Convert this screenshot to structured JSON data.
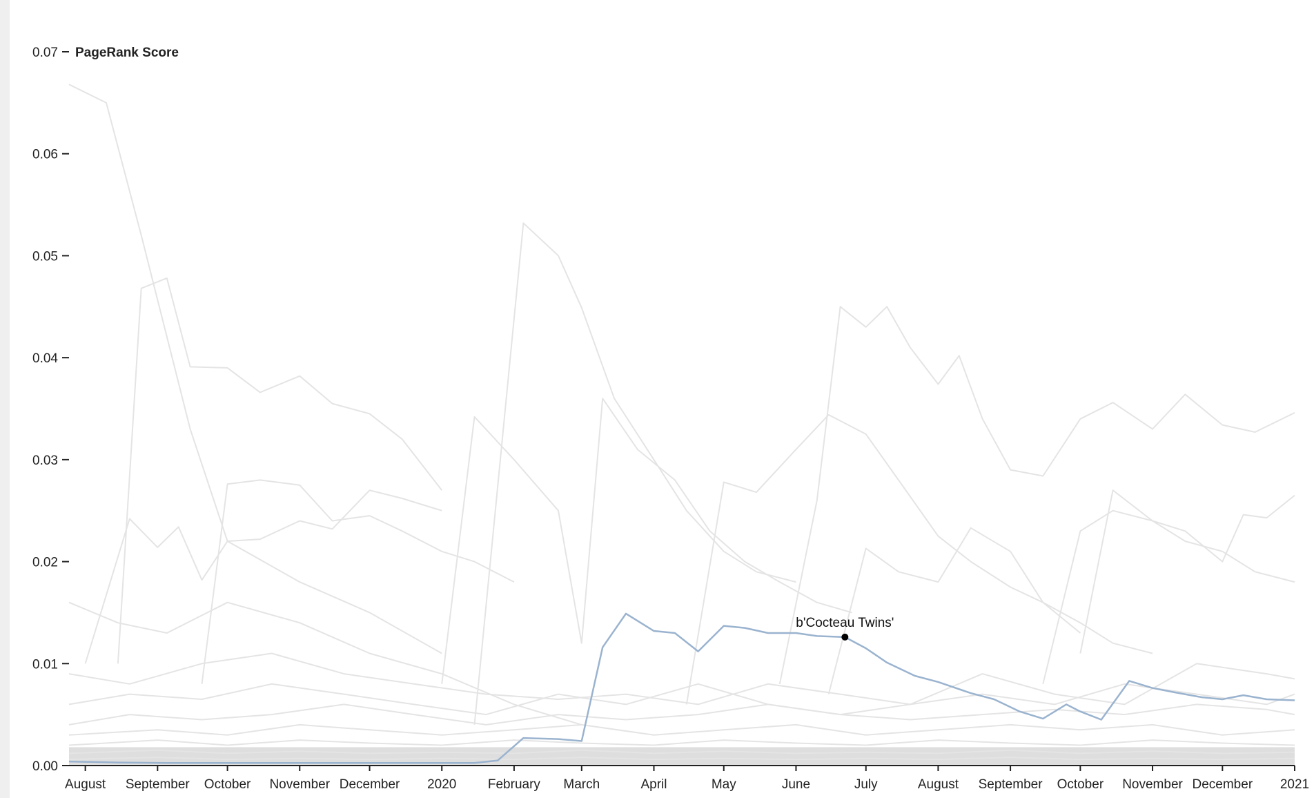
{
  "chart_data": {
    "type": "line",
    "title": "",
    "ylabel": "PageRank Score",
    "xlabel": "",
    "ylim": [
      0,
      0.07
    ],
    "xlim": [
      "2019-07-25",
      "2021-01-01"
    ],
    "y_ticks": [
      0,
      0.01,
      0.02,
      0.03,
      0.04,
      0.05,
      0.06,
      0.07
    ],
    "y_tick_labels": [
      "0.00",
      "0.01",
      "0.02",
      "0.03",
      "0.04",
      "0.05",
      "0.06",
      "0.07"
    ],
    "x_ticks": [
      {
        "date": "2019-08-01",
        "label": "August"
      },
      {
        "date": "2019-09-01",
        "label": "September"
      },
      {
        "date": "2019-10-01",
        "label": "October"
      },
      {
        "date": "2019-11-01",
        "label": "November"
      },
      {
        "date": "2019-12-01",
        "label": "December"
      },
      {
        "date": "2020-01-01",
        "label": "2020"
      },
      {
        "date": "2020-02-01",
        "label": "February"
      },
      {
        "date": "2020-03-01",
        "label": "March"
      },
      {
        "date": "2020-04-01",
        "label": "April"
      },
      {
        "date": "2020-05-01",
        "label": "May"
      },
      {
        "date": "2020-06-01",
        "label": "June"
      },
      {
        "date": "2020-07-01",
        "label": "July"
      },
      {
        "date": "2020-08-01",
        "label": "August"
      },
      {
        "date": "2020-09-01",
        "label": "September"
      },
      {
        "date": "2020-10-01",
        "label": "October"
      },
      {
        "date": "2020-11-01",
        "label": "November"
      },
      {
        "date": "2020-12-01",
        "label": "December"
      },
      {
        "date": "2021-01-01",
        "label": "2021"
      }
    ],
    "highlight_color": "#9ab3cf",
    "background_line_color": "#e4e4e4",
    "highlight": {
      "name": "b'Cocteau Twins'",
      "x": [
        "2019-07-25",
        "2019-08-15",
        "2019-09-05",
        "2019-10-01",
        "2019-11-01",
        "2019-12-01",
        "2020-01-01",
        "2020-01-15",
        "2020-01-25",
        "2020-02-05",
        "2020-02-20",
        "2020-03-01",
        "2020-03-10",
        "2020-03-20",
        "2020-04-01",
        "2020-04-10",
        "2020-04-20",
        "2020-05-01",
        "2020-05-10",
        "2020-05-20",
        "2020-06-01",
        "2020-06-10",
        "2020-06-22",
        "2020-07-01",
        "2020-07-10",
        "2020-07-22",
        "2020-08-01",
        "2020-08-15",
        "2020-08-25",
        "2020-09-05",
        "2020-09-15",
        "2020-09-25",
        "2020-10-01",
        "2020-10-10",
        "2020-10-22",
        "2020-11-01",
        "2020-11-10",
        "2020-11-22",
        "2020-12-01",
        "2020-12-10",
        "2020-12-20",
        "2021-01-01"
      ],
      "y": [
        0.0004,
        0.0003,
        0.00025,
        0.00025,
        0.00025,
        0.00025,
        0.00025,
        0.00025,
        0.0005,
        0.0027,
        0.0026,
        0.0024,
        0.0116,
        0.0149,
        0.0132,
        0.013,
        0.0112,
        0.0137,
        0.0135,
        0.013,
        0.013,
        0.0127,
        0.0126,
        0.0115,
        0.0101,
        0.0088,
        0.0082,
        0.0071,
        0.0065,
        0.0053,
        0.0046,
        0.006,
        0.0053,
        0.0045,
        0.0083,
        0.0076,
        0.0072,
        0.0067,
        0.0065,
        0.0069,
        0.0065,
        0.0064
      ]
    },
    "annotation": {
      "label": "b'Cocteau Twins'",
      "x": "2020-06-22",
      "y": 0.0126
    },
    "background_series": [
      {
        "x": [
          "2019-07-25",
          "2019-08-10",
          "2019-08-25",
          "2019-09-15",
          "2019-10-01",
          "2019-11-01",
          "2019-12-01",
          "2020-01-01"
        ],
        "y": [
          0.0668,
          0.065,
          0.052,
          0.033,
          0.022,
          0.018,
          0.015,
          0.011
        ]
      },
      {
        "x": [
          "2019-08-15",
          "2019-08-25",
          "2019-09-05",
          "2019-09-15",
          "2019-10-01",
          "2019-10-15",
          "2019-11-01",
          "2019-11-15",
          "2019-12-01",
          "2019-12-15",
          "2020-01-01"
        ],
        "y": [
          0.01,
          0.0468,
          0.0478,
          0.0391,
          0.039,
          0.0366,
          0.0382,
          0.0355,
          0.0345,
          0.032,
          0.027
        ]
      },
      {
        "x": [
          "2020-01-15",
          "2020-02-05",
          "2020-02-20",
          "2020-03-01",
          "2020-03-15",
          "2020-04-01",
          "2020-04-15",
          "2020-05-01",
          "2020-05-15",
          "2020-06-01"
        ],
        "y": [
          0.004,
          0.0532,
          0.05,
          0.0449,
          0.036,
          0.03,
          0.025,
          0.021,
          0.019,
          0.018
        ]
      },
      {
        "x": [
          "2020-01-01",
          "2020-01-15",
          "2020-02-01",
          "2020-02-20",
          "2020-03-01",
          "2020-03-10",
          "2020-03-25",
          "2020-04-10",
          "2020-04-25",
          "2020-05-10",
          "2020-05-25",
          "2020-06-10",
          "2020-06-25"
        ],
        "y": [
          0.008,
          0.0342,
          0.03,
          0.025,
          0.012,
          0.036,
          0.031,
          0.028,
          0.023,
          0.02,
          0.018,
          0.016,
          0.015
        ]
      },
      {
        "x": [
          "2020-05-25",
          "2020-06-10",
          "2020-06-20",
          "2020-07-01",
          "2020-07-10",
          "2020-07-20",
          "2020-08-01",
          "2020-08-10",
          "2020-08-20",
          "2020-09-01",
          "2020-09-15",
          "2020-10-01",
          "2020-10-15",
          "2020-11-01",
          "2020-11-15",
          "2020-12-01",
          "2020-12-15",
          "2021-01-01"
        ],
        "y": [
          0.008,
          0.026,
          0.045,
          0.043,
          0.045,
          0.041,
          0.0374,
          0.0402,
          0.034,
          0.029,
          0.0284,
          0.034,
          0.0356,
          0.033,
          0.0364,
          0.0334,
          0.0327,
          0.0346
        ]
      },
      {
        "x": [
          "2020-04-15",
          "2020-05-01",
          "2020-05-15",
          "2020-06-01",
          "2020-06-15",
          "2020-07-01",
          "2020-07-15",
          "2020-08-01",
          "2020-08-15",
          "2020-09-01",
          "2020-09-15",
          "2020-10-01",
          "2020-10-15",
          "2020-11-01"
        ],
        "y": [
          0.006,
          0.0278,
          0.0268,
          0.031,
          0.0344,
          0.0325,
          0.028,
          0.0225,
          0.02,
          0.0175,
          0.016,
          0.014,
          0.012,
          0.011
        ]
      },
      {
        "x": [
          "2019-08-01",
          "2019-08-20",
          "2019-09-01",
          "2019-09-10",
          "2019-09-20",
          "2019-10-01",
          "2019-10-15",
          "2019-11-01",
          "2019-11-15",
          "2019-12-01",
          "2019-12-15",
          "2020-01-01"
        ],
        "y": [
          0.01,
          0.0242,
          0.0214,
          0.0234,
          0.0182,
          0.022,
          0.0222,
          0.024,
          0.0232,
          0.027,
          0.0262,
          0.025
        ]
      },
      {
        "x": [
          "2019-09-20",
          "2019-10-01",
          "2019-10-15",
          "2019-11-01",
          "2019-11-15",
          "2019-12-01",
          "2019-12-15",
          "2020-01-01",
          "2020-01-15",
          "2020-02-01"
        ],
        "y": [
          0.008,
          0.0276,
          0.028,
          0.0275,
          0.024,
          0.0245,
          0.023,
          0.021,
          0.02,
          0.018
        ]
      },
      {
        "x": [
          "2020-10-01",
          "2020-10-15",
          "2020-11-01",
          "2020-11-15",
          "2020-12-01",
          "2020-12-10",
          "2020-12-20",
          "2021-01-01"
        ],
        "y": [
          0.011,
          0.027,
          0.024,
          0.023,
          0.02,
          0.0246,
          0.0243,
          0.0265
        ]
      },
      {
        "x": [
          "2020-06-15",
          "2020-07-01",
          "2020-07-15",
          "2020-08-01",
          "2020-08-15",
          "2020-09-01",
          "2020-09-15",
          "2020-10-01"
        ],
        "y": [
          0.007,
          0.0213,
          0.019,
          0.018,
          0.0233,
          0.021,
          0.016,
          0.013
        ]
      },
      {
        "x": [
          "2020-09-15",
          "2020-10-01",
          "2020-10-15",
          "2020-11-01",
          "2020-11-15",
          "2020-12-01",
          "2020-12-15",
          "2021-01-01"
        ],
        "y": [
          0.008,
          0.023,
          0.025,
          0.024,
          0.022,
          0.021,
          0.019,
          0.018
        ]
      },
      {
        "x": [
          "2019-07-25",
          "2019-08-15",
          "2019-09-05",
          "2019-10-01",
          "2019-11-01",
          "2019-12-01",
          "2020-01-01",
          "2020-02-01",
          "2020-03-01"
        ],
        "y": [
          0.016,
          0.014,
          0.013,
          0.016,
          0.014,
          0.011,
          0.009,
          0.006,
          0.004
        ]
      },
      {
        "x": [
          "2019-07-25",
          "2019-08-20",
          "2019-09-20",
          "2019-10-20",
          "2019-11-20",
          "2019-12-20",
          "2020-01-20",
          "2020-02-20",
          "2020-03-20",
          "2020-04-20",
          "2020-05-20",
          "2020-06-20",
          "2020-07-20",
          "2020-08-20",
          "2020-09-20",
          "2020-10-20",
          "2020-11-20",
          "2020-12-20",
          "2021-01-01"
        ],
        "y": [
          0.009,
          0.008,
          0.01,
          0.011,
          0.009,
          0.008,
          0.007,
          0.0065,
          0.007,
          0.006,
          0.008,
          0.007,
          0.006,
          0.009,
          0.007,
          0.006,
          0.01,
          0.009,
          0.0085
        ]
      },
      {
        "x": [
          "2019-07-25",
          "2019-08-20",
          "2019-09-20",
          "2019-10-20",
          "2019-11-20",
          "2019-12-20",
          "2020-01-20",
          "2020-02-20",
          "2020-03-20",
          "2020-04-20",
          "2020-05-20",
          "2020-06-20",
          "2020-07-20",
          "2020-08-20",
          "2020-09-20",
          "2020-10-20",
          "2020-11-20",
          "2020-12-20",
          "2021-01-01"
        ],
        "y": [
          0.006,
          0.007,
          0.0065,
          0.008,
          0.007,
          0.006,
          0.005,
          0.007,
          0.006,
          0.008,
          0.006,
          0.005,
          0.006,
          0.007,
          0.006,
          0.008,
          0.007,
          0.006,
          0.007
        ]
      },
      {
        "x": [
          "2019-07-25",
          "2019-08-20",
          "2019-09-20",
          "2019-10-20",
          "2019-11-20",
          "2019-12-20",
          "2020-01-20",
          "2020-02-20",
          "2020-03-20",
          "2020-04-20",
          "2020-05-20",
          "2020-06-20",
          "2020-07-20",
          "2020-08-20",
          "2020-09-20",
          "2020-10-20",
          "2020-11-20",
          "2020-12-20",
          "2021-01-01"
        ],
        "y": [
          0.004,
          0.005,
          0.0045,
          0.005,
          0.006,
          0.005,
          0.004,
          0.005,
          0.0045,
          0.005,
          0.006,
          0.005,
          0.0045,
          0.005,
          0.0055,
          0.005,
          0.006,
          0.0055,
          0.005
        ]
      },
      {
        "x": [
          "2019-07-25",
          "2019-09-01",
          "2019-10-01",
          "2019-11-01",
          "2019-12-01",
          "2020-01-01",
          "2020-02-01",
          "2020-03-01",
          "2020-04-01",
          "2020-05-01",
          "2020-06-01",
          "2020-07-01",
          "2020-08-01",
          "2020-09-01",
          "2020-10-01",
          "2020-11-01",
          "2020-12-01",
          "2021-01-01"
        ],
        "y": [
          0.003,
          0.0035,
          0.003,
          0.004,
          0.0035,
          0.003,
          0.0035,
          0.004,
          0.003,
          0.0035,
          0.004,
          0.003,
          0.0035,
          0.004,
          0.0035,
          0.004,
          0.003,
          0.0035
        ]
      },
      {
        "x": [
          "2019-07-25",
          "2019-09-01",
          "2019-10-01",
          "2019-11-01",
          "2019-12-01",
          "2020-01-01",
          "2020-02-01",
          "2020-03-01",
          "2020-04-01",
          "2020-05-01",
          "2020-06-01",
          "2020-07-01",
          "2020-08-01",
          "2020-09-01",
          "2020-10-01",
          "2020-11-01",
          "2020-12-01",
          "2021-01-01"
        ],
        "y": [
          0.002,
          0.0025,
          0.002,
          0.0025,
          0.0022,
          0.002,
          0.0025,
          0.0022,
          0.002,
          0.0025,
          0.0022,
          0.002,
          0.0025,
          0.0022,
          0.002,
          0.0025,
          0.0022,
          0.002
        ]
      },
      {
        "x": [
          "2019-07-25",
          "2019-09-01",
          "2019-10-01",
          "2019-11-01",
          "2019-12-01",
          "2020-01-01",
          "2020-02-01",
          "2020-03-01",
          "2020-04-01",
          "2020-05-01",
          "2020-06-01",
          "2020-07-01",
          "2020-08-01",
          "2020-09-01",
          "2020-10-01",
          "2020-11-01",
          "2020-12-01",
          "2021-01-01"
        ],
        "y": [
          0.0012,
          0.0015,
          0.0012,
          0.0014,
          0.0012,
          0.0013,
          0.0012,
          0.0015,
          0.0012,
          0.0014,
          0.0012,
          0.0013,
          0.0012,
          0.0015,
          0.0012,
          0.0014,
          0.0012,
          0.0013
        ]
      },
      {
        "x": [
          "2019-07-25",
          "2019-09-01",
          "2019-10-01",
          "2019-11-01",
          "2019-12-01",
          "2020-01-01",
          "2020-02-01",
          "2020-03-01",
          "2020-04-01",
          "2020-05-01",
          "2020-06-01",
          "2020-07-01",
          "2020-08-01",
          "2020-09-01",
          "2020-10-01",
          "2020-11-01",
          "2020-12-01",
          "2021-01-01"
        ],
        "y": [
          0.0006,
          0.0008,
          0.0006,
          0.0007,
          0.0006,
          0.0007,
          0.0006,
          0.0008,
          0.0006,
          0.0007,
          0.0006,
          0.0007,
          0.0006,
          0.0008,
          0.0006,
          0.0007,
          0.0006,
          0.0007
        ]
      }
    ]
  }
}
